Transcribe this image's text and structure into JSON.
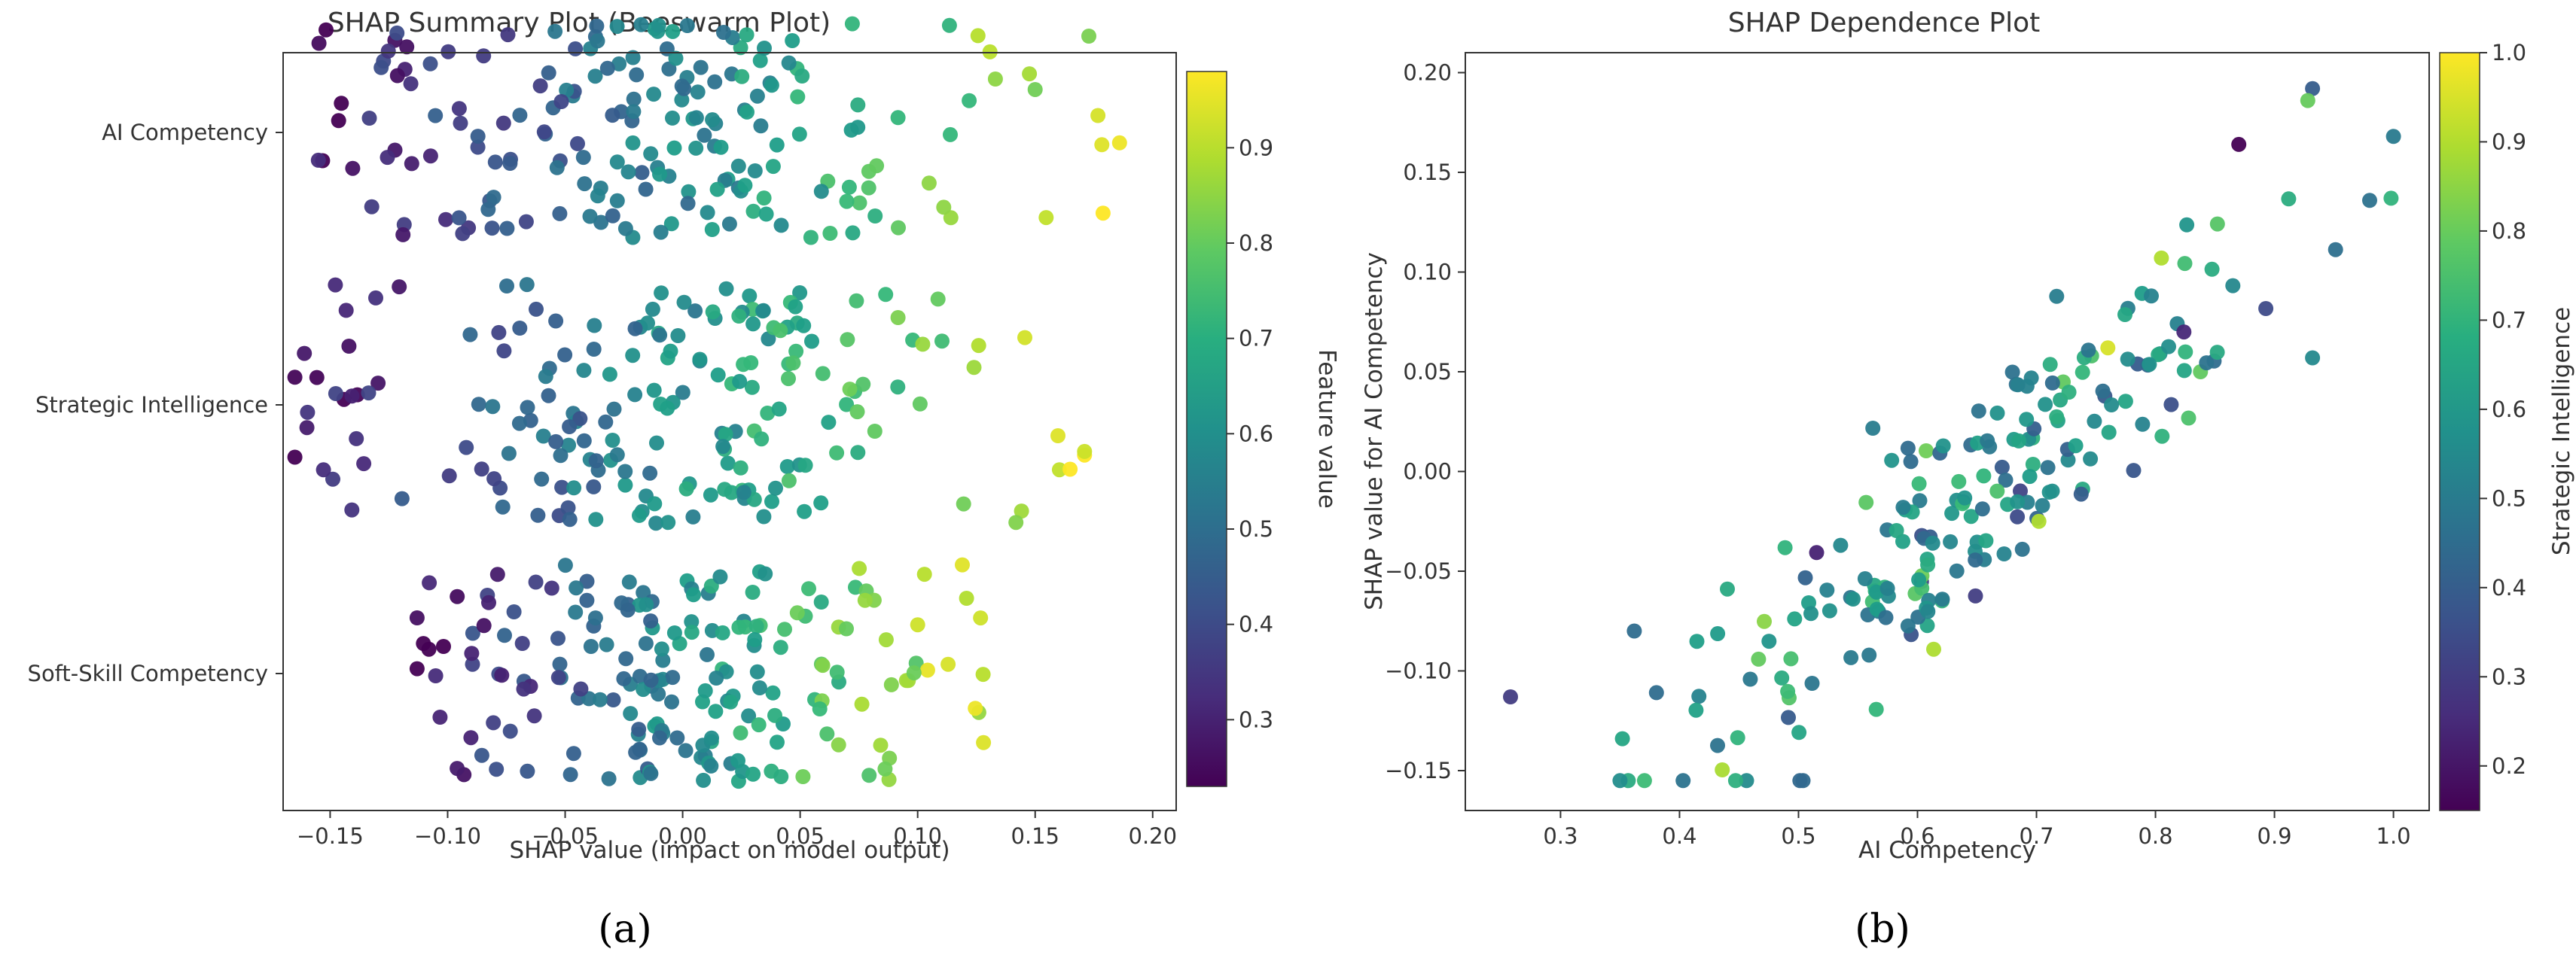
{
  "captions": [
    "(a)",
    "(b)"
  ],
  "chart_data": [
    {
      "type": "scatter",
      "subtype": "beeswarm",
      "title": "SHAP Summary Plot (Beeswarm Plot)",
      "xlabel": "SHAP value (impact on model output)",
      "ylabel": "",
      "xlim": [
        -0.17,
        0.21
      ],
      "xticks": [
        -0.15,
        -0.1,
        -0.05,
        0.0,
        0.05,
        0.1,
        0.15,
        0.2
      ],
      "xtick_labels": [
        "−0.15",
        "−0.10",
        "−0.05",
        "0.00",
        "0.05",
        "0.10",
        "0.15",
        "0.20"
      ],
      "categories": [
        "AI Competency",
        "Strategic Intelligence",
        "Soft-Skill Competency"
      ],
      "colorbar": {
        "label": "Feature value",
        "colormap": "viridis",
        "range": [
          0.23,
          0.98
        ],
        "ticks": [
          0.3,
          0.4,
          0.5,
          0.6,
          0.7,
          0.8,
          0.9
        ],
        "tick_labels": [
          "0.3",
          "0.4",
          "0.5",
          "0.6",
          "0.7",
          "0.8",
          "0.9"
        ]
      },
      "grid": false,
      "series": [
        {
          "category": "AI Competency",
          "points_shown": 200,
          "shap_range": [
            -0.155,
            0.192
          ],
          "note_max_point": [
            0.192,
            0.95
          ]
        },
        {
          "category": "Strategic Intelligence",
          "points_shown": 200,
          "shap_range": [
            -0.165,
            0.171
          ]
        },
        {
          "category": "Soft-Skill Competency",
          "points_shown": 200,
          "shap_range": [
            -0.113,
            0.128
          ]
        }
      ]
    },
    {
      "type": "scatter",
      "title": "SHAP Dependence Plot",
      "xlabel": "AI Competency",
      "ylabel": "SHAP value for AI Competency",
      "xlim": [
        0.22,
        1.03
      ],
      "ylim": [
        -0.17,
        0.21
      ],
      "xticks": [
        0.3,
        0.4,
        0.5,
        0.6,
        0.7,
        0.8,
        0.9,
        1.0
      ],
      "xtick_labels": [
        "0.3",
        "0.4",
        "0.5",
        "0.6",
        "0.7",
        "0.8",
        "0.9",
        "1.0"
      ],
      "yticks": [
        -0.15,
        -0.1,
        -0.05,
        0.0,
        0.05,
        0.1,
        0.15,
        0.2
      ],
      "ytick_labels": [
        "−0.15",
        "−0.10",
        "−0.05",
        "0.00",
        "0.05",
        "0.10",
        "0.15",
        "0.20"
      ],
      "colorbar": {
        "label": "Strategic Intelligence",
        "colormap": "viridis",
        "range": [
          0.15,
          1.0
        ],
        "ticks": [
          0.2,
          0.3,
          0.4,
          0.5,
          0.6,
          0.7,
          0.8,
          0.9,
          1.0
        ],
        "tick_labels": [
          "0.2",
          "0.3",
          "0.4",
          "0.5",
          "0.6",
          "0.7",
          "0.8",
          "0.9",
          "1.0"
        ]
      },
      "grid": false,
      "points_shown": 200,
      "trend": {
        "slope": 0.48,
        "intercept": -0.33
      },
      "highlighted_points": [
        [
          0.258,
          -0.113,
          0.3
        ],
        [
          0.362,
          -0.08,
          0.45
        ],
        [
          0.352,
          -0.134,
          0.65
        ],
        [
          0.932,
          0.192,
          0.4
        ],
        [
          0.87,
          0.164,
          0.15
        ],
        [
          0.928,
          0.186,
          0.8
        ],
        [
          1.0,
          0.168,
          0.5
        ],
        [
          0.998,
          0.137,
          0.7
        ],
        [
          0.932,
          0.057,
          0.55
        ],
        [
          0.805,
          0.107,
          0.9
        ],
        [
          0.76,
          0.062,
          0.95
        ],
        [
          0.702,
          -0.025,
          0.9
        ]
      ]
    }
  ]
}
